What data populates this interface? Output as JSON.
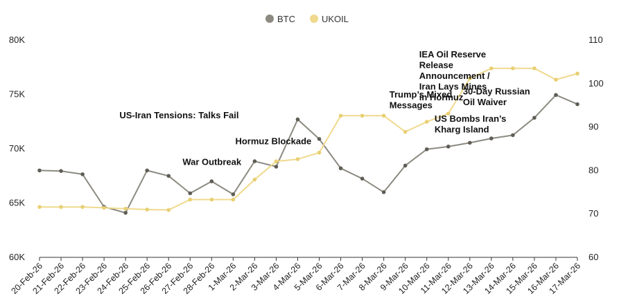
{
  "chart_data": {
    "type": "line",
    "title": "",
    "categories": [
      "20-Feb-26",
      "21-Feb-26",
      "22-Feb-26",
      "23-Feb-26",
      "24-Feb-26",
      "25-Feb-26",
      "26-Feb-26",
      "27-Feb-26",
      "28-Feb-26",
      "1-Mar-26",
      "2-Mar-26",
      "3-Mar-26",
      "4-Mar-26",
      "5-Mar-26",
      "6-Mar-26",
      "7-Mar-26",
      "8-Mar-26",
      "9-Mar-26",
      "10-Mar-26",
      "11-Mar-26",
      "12-Mar-26",
      "13-Mar-26",
      "14-Mar-26",
      "15-Mar-26",
      "16-Mar-26",
      "17-Mar-26"
    ],
    "series": [
      {
        "name": "BTC",
        "axis": "left",
        "color": "#8c8a80",
        "values": [
          68000,
          67950,
          67650,
          64650,
          64100,
          68000,
          67500,
          65900,
          67000,
          65800,
          68850,
          68350,
          72700,
          70900,
          68200,
          67250,
          66000,
          68450,
          69950,
          70200,
          70550,
          70950,
          71250,
          72850,
          74950,
          74100
        ]
      },
      {
        "name": "UKOIL",
        "axis": "right",
        "color": "#f0d98c",
        "values": [
          71.6,
          71.6,
          71.6,
          71.4,
          71.2,
          71.0,
          70.9,
          73.3,
          73.3,
          73.3,
          77.9,
          82.1,
          82.6,
          84.1,
          92.6,
          92.6,
          92.6,
          88.9,
          91.2,
          93.1,
          101.2,
          103.5,
          103.5,
          103.5,
          100.9,
          102.3
        ]
      }
    ],
    "y_left": {
      "ylim": [
        60000,
        80000
      ],
      "ticks": [
        60000,
        65000,
        70000,
        75000,
        80000
      ],
      "tick_labels": [
        "60K",
        "65K",
        "70K",
        "75K",
        "80K"
      ]
    },
    "y_right": {
      "ylim": [
        60,
        110
      ],
      "ticks": [
        60,
        70,
        80,
        90,
        100,
        110
      ],
      "tick_labels": [
        "60",
        "70",
        "80",
        "90",
        "100",
        "110"
      ]
    },
    "legend": {
      "placement": "top-center",
      "entries": [
        "BTC",
        "UKOIL"
      ]
    },
    "grid": false,
    "annotations": [
      {
        "x_index": 8,
        "y_axis": "left",
        "y": 72800,
        "lines": [
          "US-Iran Tensions: Talks Fail"
        ]
      },
      {
        "x_index": 8,
        "y_axis": "left",
        "y": 68500,
        "lines": [
          "War Outbreak"
        ]
      },
      {
        "x_index": 11,
        "y_axis": "left",
        "y": 70400,
        "lines": [
          "Hormuz Blockade"
        ]
      },
      {
        "x_index": 20,
        "y_axis": "right",
        "y": 106,
        "lines": [
          "IEA Oil Reserve",
          "Release",
          "Announcement /",
          "Iran Lays Mines",
          "in Hormuz"
        ]
      },
      {
        "x_index": 19,
        "y_axis": "left",
        "y": 74700,
        "lines": [
          "Trump’s Mixed",
          "Messages"
        ]
      },
      {
        "x_index": 21,
        "y_axis": "left",
        "y": 75000,
        "lines": [
          "30-Day Russian",
          "Oil Waiver"
        ]
      },
      {
        "x_index": 21,
        "y_axis": "left",
        "y": 72500,
        "lines": [
          "US Bombs Iran’s",
          "Kharg Island"
        ]
      }
    ]
  }
}
